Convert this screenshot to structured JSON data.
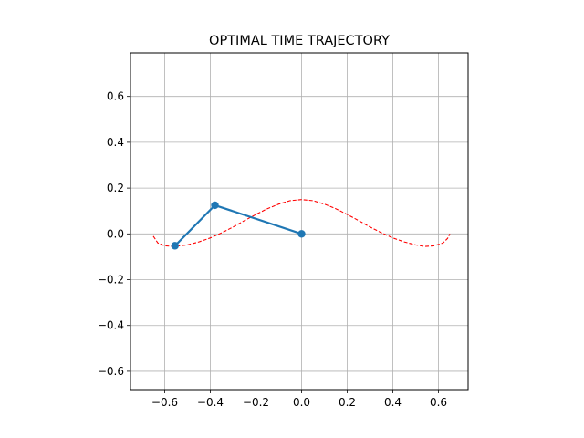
{
  "chart_data": {
    "type": "line",
    "title": "OPTIMAL TIME TRAJECTORY",
    "xlabel": "",
    "ylabel": "",
    "xlim": [
      -0.75,
      0.73
    ],
    "ylim": [
      -0.68,
      0.79
    ],
    "grid": true,
    "legend": "none",
    "x_ticks": [
      -0.6,
      -0.4,
      -0.2,
      0.0,
      0.2,
      0.4,
      0.6
    ],
    "x_tick_labels": [
      "−0.6",
      "−0.4",
      "−0.2",
      "0.0",
      "0.2",
      "0.4",
      "0.6"
    ],
    "y_ticks": [
      -0.6,
      -0.4,
      -0.2,
      0.0,
      0.2,
      0.4,
      0.6
    ],
    "y_tick_labels": [
      "−0.6",
      "−0.4",
      "−0.2",
      "0.0",
      "0.2",
      "0.4",
      "0.6"
    ],
    "series": [
      {
        "style": "dashed",
        "color": "#ff0000",
        "points": [
          [
            -0.65,
            -0.01
          ],
          [
            -0.63,
            -0.04
          ],
          [
            -0.6,
            -0.052
          ],
          [
            -0.56,
            -0.055
          ],
          [
            -0.5,
            -0.048
          ],
          [
            -0.45,
            -0.035
          ],
          [
            -0.4,
            -0.018
          ],
          [
            -0.35,
            0.005
          ],
          [
            -0.3,
            0.03
          ],
          [
            -0.25,
            0.058
          ],
          [
            -0.2,
            0.085
          ],
          [
            -0.15,
            0.11
          ],
          [
            -0.1,
            0.13
          ],
          [
            -0.05,
            0.145
          ],
          [
            0.0,
            0.15
          ],
          [
            0.05,
            0.145
          ],
          [
            0.1,
            0.13
          ],
          [
            0.15,
            0.11
          ],
          [
            0.2,
            0.085
          ],
          [
            0.25,
            0.058
          ],
          [
            0.3,
            0.03
          ],
          [
            0.35,
            0.005
          ],
          [
            0.4,
            -0.018
          ],
          [
            0.45,
            -0.035
          ],
          [
            0.5,
            -0.048
          ],
          [
            0.54,
            -0.055
          ],
          [
            0.58,
            -0.052
          ],
          [
            0.62,
            -0.04
          ],
          [
            0.64,
            -0.02
          ],
          [
            0.65,
            0.0
          ]
        ]
      },
      {
        "style": "solid-markers",
        "color": "#1f77b4",
        "points": [
          [
            0.0,
            0.0
          ],
          [
            -0.38,
            0.125
          ],
          [
            -0.555,
            -0.052
          ]
        ]
      }
    ]
  }
}
